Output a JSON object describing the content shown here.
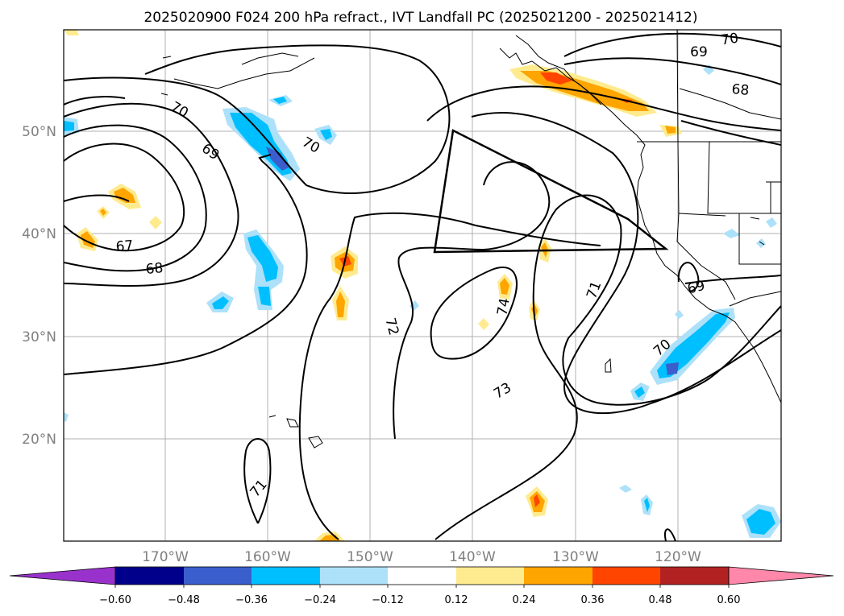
{
  "title": "2025020900 F024 200 hPa refract., IVT Landfall PC (2025021200 - 2025021412)",
  "map": {
    "lat_labels": [
      "50°N",
      "40°N",
      "30°N",
      "20°N"
    ],
    "lon_labels": [
      "170°W",
      "160°W",
      "150°W",
      "140°W",
      "130°W",
      "120°W"
    ],
    "contour_labels": [
      "70",
      "69",
      "68",
      "70",
      "69",
      "67",
      "68",
      "70",
      "72",
      "74",
      "73",
      "71",
      "69",
      "70",
      "71",
      "70",
      "69",
      "68"
    ]
  },
  "colorbar": {
    "ticks": [
      "−0.60",
      "−0.48",
      "−0.36",
      "−0.24",
      "−0.12",
      "0.12",
      "0.24",
      "0.36",
      "0.48",
      "0.60"
    ],
    "colors": [
      "#9932CC",
      "#00008B",
      "#3A5FCD",
      "#00BFFF",
      "#ADE1F9",
      "#FFFFFF",
      "#FFEB8F",
      "#FFA500",
      "#FF4500",
      "#B22222",
      "#FF88AA"
    ]
  }
}
